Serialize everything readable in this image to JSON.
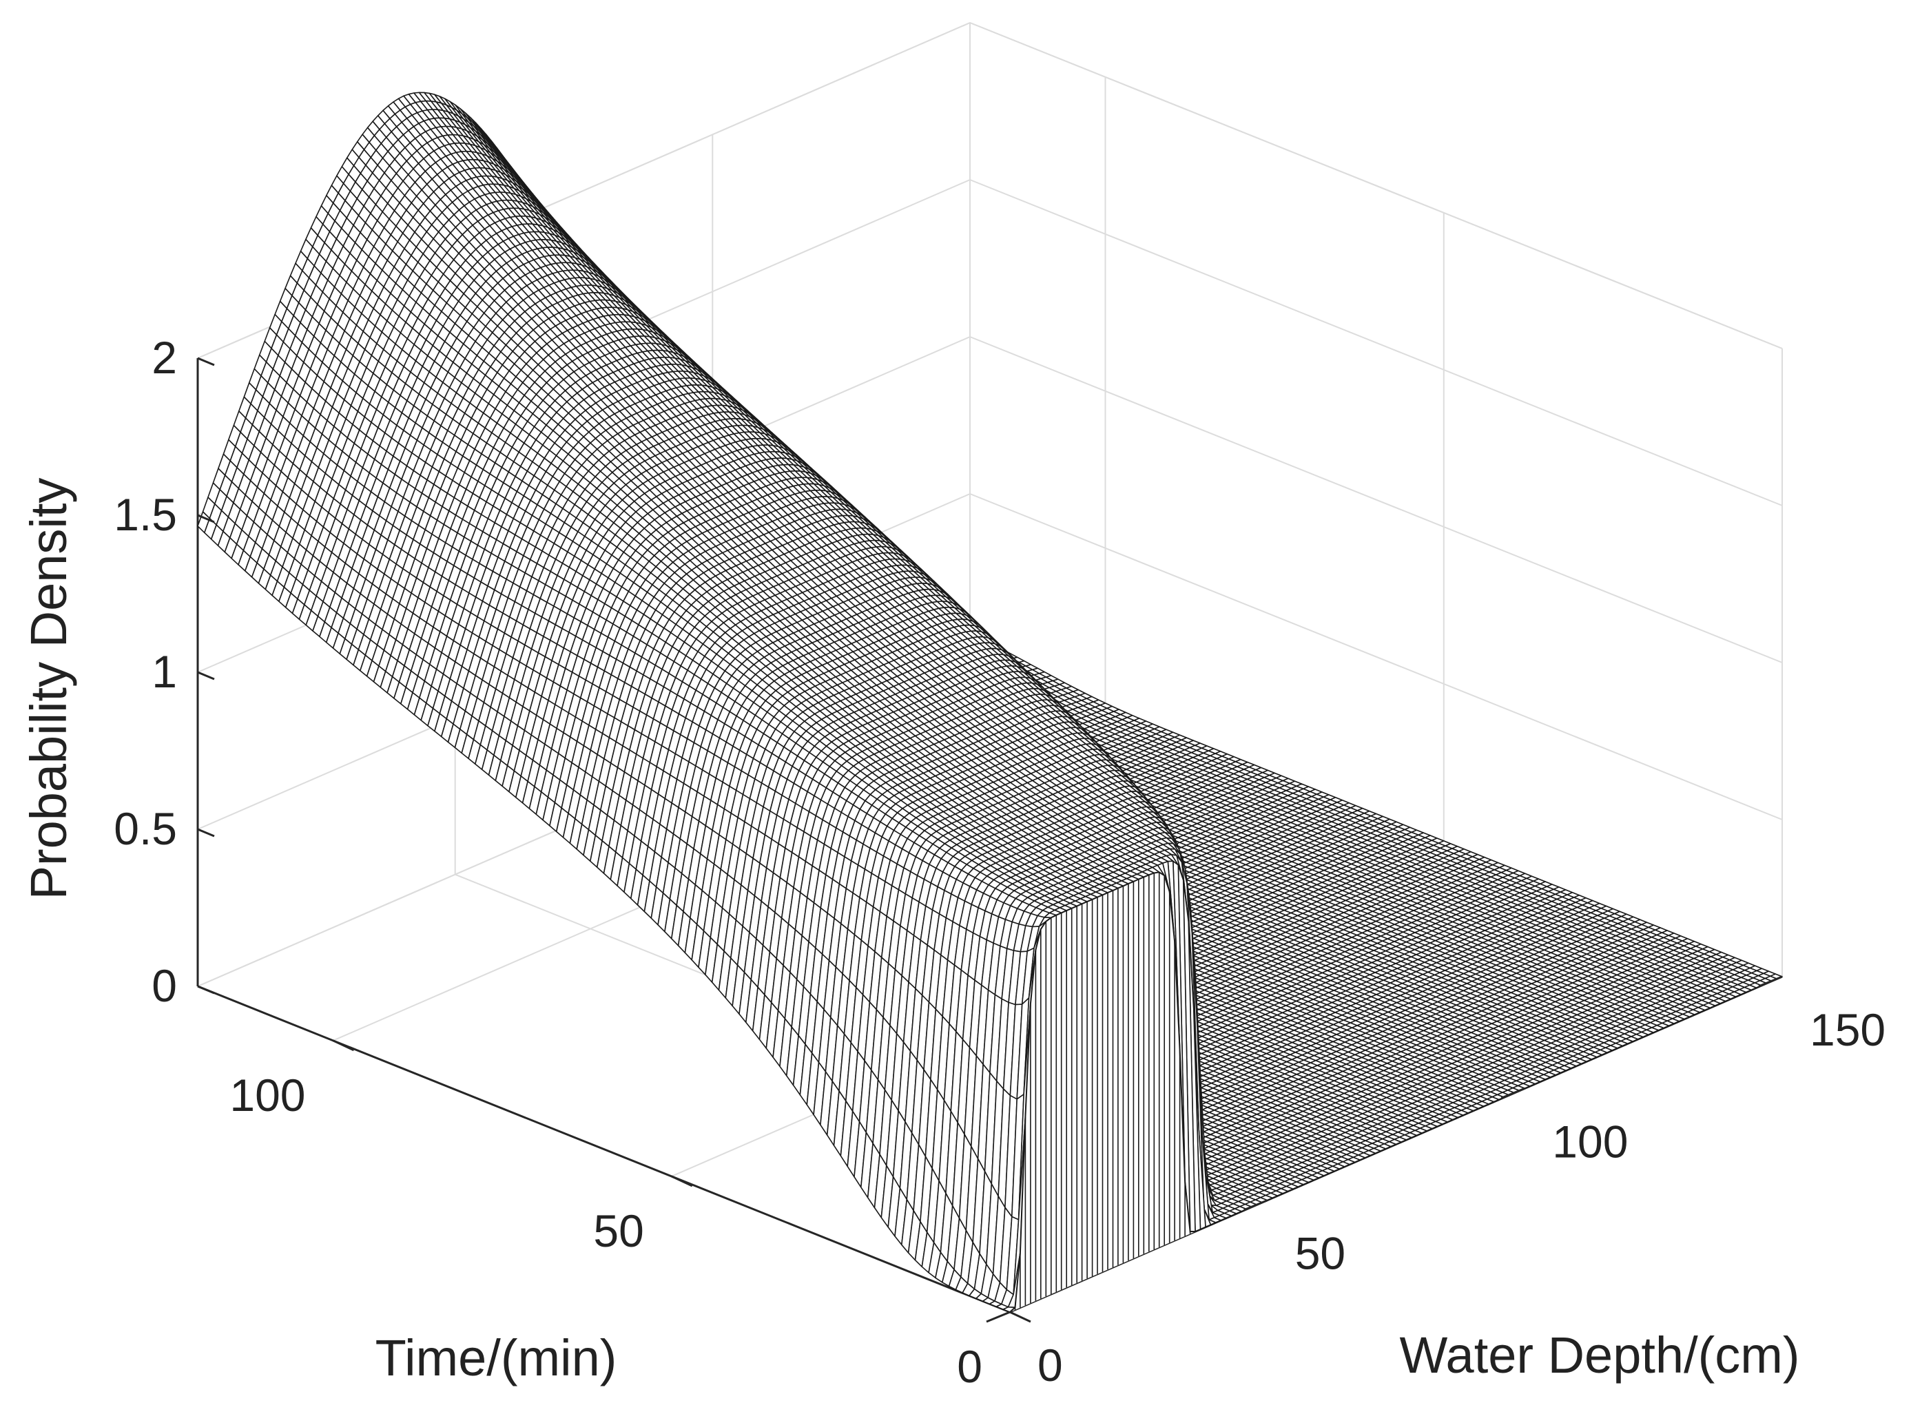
{
  "chart_data": {
    "type": "surface",
    "title": "",
    "xlabel": "Water Depth/(cm)",
    "ylabel": "Time/(min)",
    "zlabel": "Probability Density",
    "xlim": [
      0,
      150
    ],
    "ylim": [
      0,
      120
    ],
    "zlim": [
      0,
      2
    ],
    "x_ticks": [
      "0",
      "50",
      "100",
      "150"
    ],
    "y_ticks": [
      "0",
      "50",
      "100"
    ],
    "z_ticks": [
      "0",
      "0.5",
      "1",
      "1.5",
      "2"
    ],
    "grid": true,
    "colormap": "white faces, black mesh",
    "surface_model": {
      "description": "probability density over water depth at each time; near-uniform block at t=0 widening into a bell that peaks near t≈120",
      "profiles": [
        {
          "time": 0,
          "center": 18,
          "halfwidth": 15,
          "peak": 1.25
        },
        {
          "time": 40,
          "center": 35,
          "halfwidth": 15,
          "peak": 1.3
        },
        {
          "time": 80,
          "center": 38,
          "peak": 1.8
        },
        {
          "time": 120,
          "center": 40,
          "peak": 2.6
        }
      ]
    }
  },
  "colors": {
    "mesh": "#1a1a1a",
    "face": "#ffffff",
    "grid": "#dcdcdc",
    "axis": "#262626"
  }
}
